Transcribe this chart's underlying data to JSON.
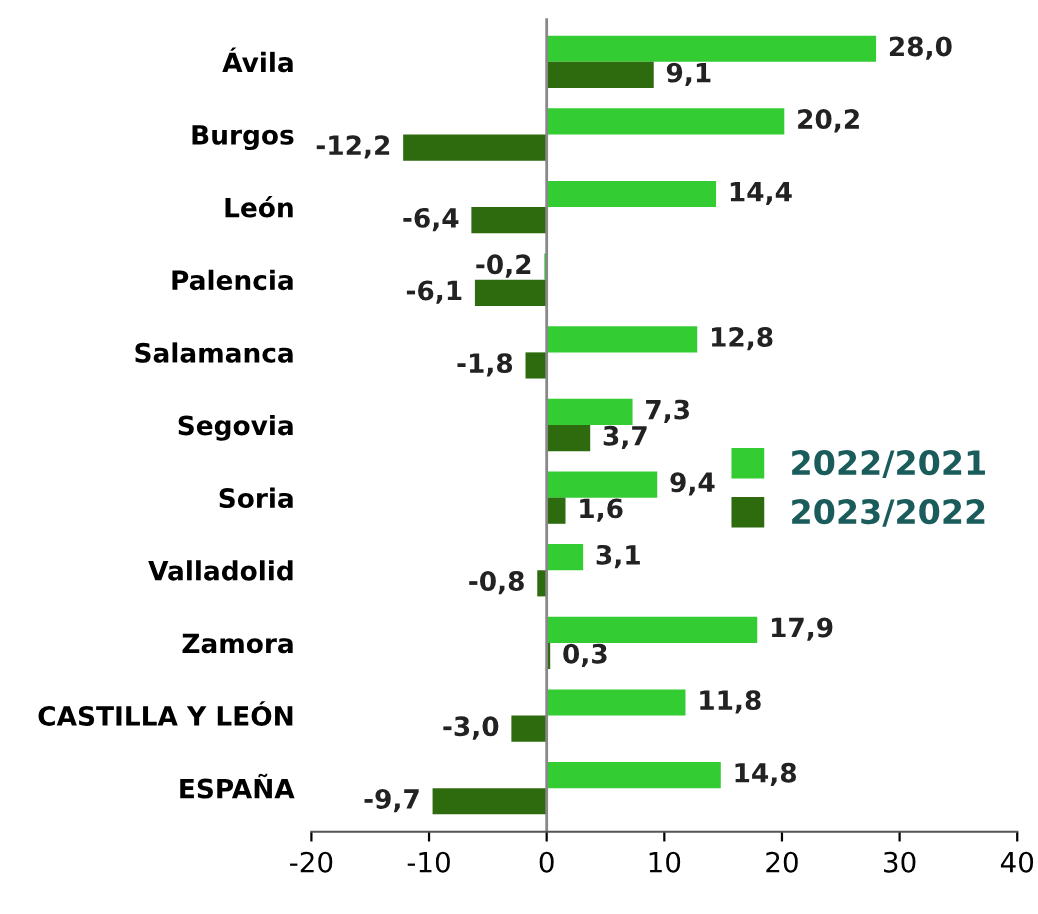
{
  "chart_data": {
    "type": "bar",
    "orientation": "horizontal",
    "categories": [
      "Ávila",
      "Burgos",
      "León",
      "Palencia",
      "Salamanca",
      "Segovia",
      "Soria",
      "Valladolid",
      "Zamora",
      "CASTILLA Y LEÓN",
      "ESPAÑA"
    ],
    "series": [
      {
        "name": "2022/2021",
        "color": "#33cc33",
        "values": [
          28.0,
          20.2,
          14.4,
          -0.2,
          12.8,
          7.3,
          9.4,
          3.1,
          17.9,
          11.8,
          14.8
        ],
        "value_labels": [
          "28,0",
          "20,2",
          "14,4",
          "-0,2",
          "12,8",
          "7,3",
          "9,4",
          "3,1",
          "17,9",
          "11,8",
          "14,8"
        ]
      },
      {
        "name": "2023/2022",
        "color": "#2e6b0e",
        "values": [
          9.1,
          -12.2,
          -6.4,
          -6.1,
          -1.8,
          3.7,
          1.6,
          -0.8,
          0.3,
          -3.0,
          -9.7
        ],
        "value_labels": [
          "9,1",
          "-12,2",
          "-6,4",
          "-6,1",
          "-1,8",
          "3,7",
          "1,6",
          "-0,8",
          "0,3",
          "-3,0",
          "-9,7"
        ]
      }
    ],
    "xlim": [
      -20,
      40
    ],
    "xticks": [
      -20,
      -10,
      0,
      10,
      20,
      30,
      40
    ],
    "ref_lines": [
      {
        "axis": "x",
        "value": 0,
        "color": "#888888"
      }
    ],
    "legend": "right",
    "grid": false
  }
}
